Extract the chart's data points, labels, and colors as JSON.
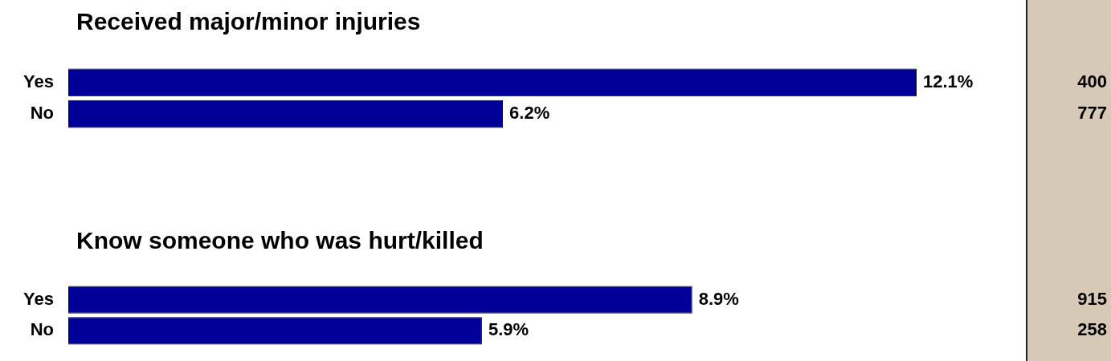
{
  "chart_data": [
    {
      "type": "bar",
      "orientation": "horizontal",
      "title": "Received major/minor injuries",
      "categories": [
        "Yes",
        "No"
      ],
      "values": [
        12.1,
        6.2
      ],
      "value_labels": [
        "12.1%",
        "6.2%"
      ],
      "color": "#000099",
      "tick_labels": "y",
      "annotations": [
        "400",
        "777"
      ]
    },
    {
      "type": "bar",
      "orientation": "horizontal",
      "title": "Know someone who was hurt/killed",
      "categories": [
        "Yes",
        "No"
      ],
      "values": [
        8.9,
        5.9
      ],
      "value_labels": [
        "8.9%",
        "5.9%"
      ],
      "color": "#000099",
      "tick_labels": "y",
      "annotations": [
        "915",
        "258"
      ]
    }
  ]
}
